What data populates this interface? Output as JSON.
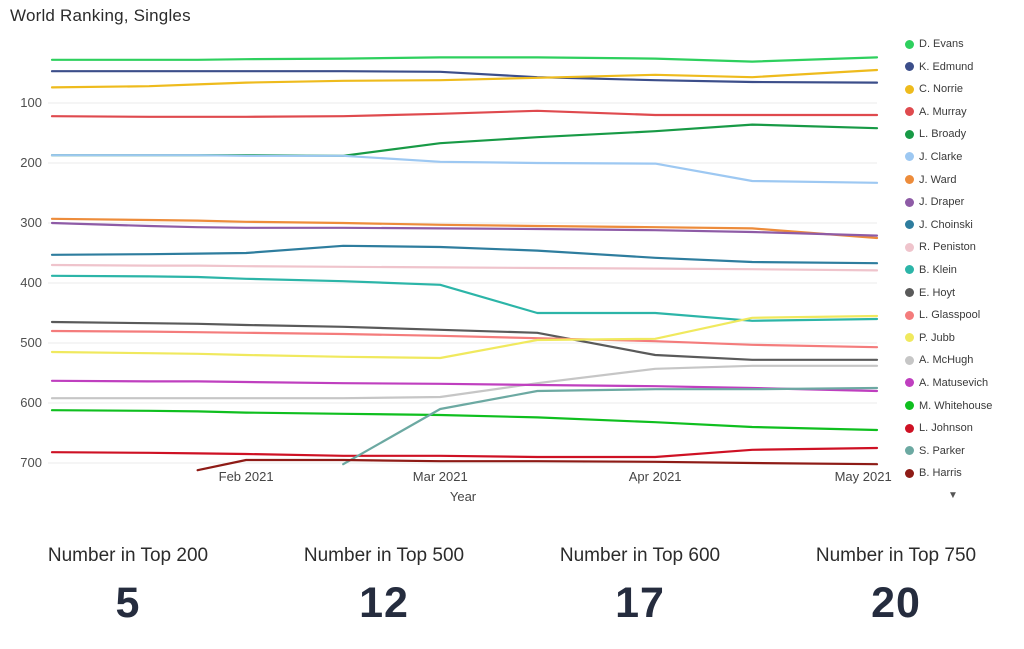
{
  "title": "World Ranking, Singles",
  "x_axis_title": "Year",
  "legend_expand_symbol": "▼",
  "chart_data": {
    "type": "line",
    "title": "World Ranking, Singles",
    "xlabel": "Year",
    "ylabel": "",
    "y_inverted": true,
    "ylim": [
      15,
      730
    ],
    "yticks": [
      100,
      200,
      300,
      400,
      500,
      600,
      700
    ],
    "grid": "horizontal",
    "legend_position": "right",
    "x": [
      "Jan 4",
      "Jan 18",
      "Jan 25",
      "Feb 1",
      "Feb 15",
      "Mar 1",
      "Mar 15",
      "Apr 1",
      "Apr 15",
      "May 3"
    ],
    "x_day_offsets": [
      0,
      14,
      21,
      28,
      42,
      56,
      70,
      87,
      101,
      119
    ],
    "xticklabels": [
      "Feb 2021",
      "Mar 2021",
      "Apr 2021",
      "May 2021"
    ],
    "xtick_day_offsets": [
      28,
      56,
      87,
      117
    ],
    "series": [
      {
        "name": "D. Evans",
        "color": "#2ed05e",
        "values": [
          28,
          28,
          28,
          27,
          26,
          24,
          24,
          26,
          31,
          24
        ]
      },
      {
        "name": "K. Edmund",
        "color": "#3c4e8a",
        "values": [
          47,
          47,
          47,
          47,
          47,
          48,
          57,
          62,
          65,
          66
        ]
      },
      {
        "name": "C. Norrie",
        "color": "#eebb1d",
        "values": [
          74,
          72,
          69,
          66,
          63,
          62,
          58,
          53,
          57,
          45
        ]
      },
      {
        "name": "A. Murray",
        "color": "#df4a4e",
        "values": [
          122,
          123,
          123,
          123,
          122,
          118,
          113,
          120,
          120,
          120
        ]
      },
      {
        "name": "L. Broady",
        "color": "#189a46",
        "values": [
          187,
          187,
          187,
          187,
          188,
          167,
          157,
          147,
          136,
          142
        ]
      },
      {
        "name": "J. Clarke",
        "color": "#9dc8f2",
        "values": [
          187,
          187,
          187,
          188,
          188,
          198,
          200,
          201,
          230,
          233
        ]
      },
      {
        "name": "J. Ward",
        "color": "#ed8c3b",
        "values": [
          293,
          295,
          296,
          298,
          300,
          303,
          305,
          307,
          309,
          325
        ]
      },
      {
        "name": "J. Draper",
        "color": "#8e5ba6",
        "values": [
          300,
          305,
          307,
          308,
          308,
          309,
          310,
          312,
          315,
          321
        ]
      },
      {
        "name": "J. Choinski",
        "color": "#2e7d9e",
        "values": [
          353,
          352,
          351,
          350,
          338,
          340,
          346,
          358,
          365,
          367
        ]
      },
      {
        "name": "R. Peniston",
        "color": "#efc4cc",
        "values": [
          370,
          371,
          371,
          372,
          373,
          374,
          375,
          376,
          377,
          379
        ]
      },
      {
        "name": "B. Klein",
        "color": "#2cb5a8",
        "values": [
          388,
          389,
          390,
          393,
          397,
          403,
          450,
          450,
          463,
          460
        ]
      },
      {
        "name": "E. Hoyt",
        "color": "#5a5a5a",
        "values": [
          465,
          467,
          468,
          470,
          473,
          478,
          483,
          520,
          528,
          528
        ]
      },
      {
        "name": "L. Glasspool",
        "color": "#f47c7c",
        "values": [
          480,
          481,
          482,
          483,
          485,
          488,
          492,
          497,
          503,
          507
        ]
      },
      {
        "name": "P. Jubb",
        "color": "#f0e95e",
        "values": [
          515,
          517,
          518,
          520,
          523,
          525,
          495,
          493,
          458,
          455
        ]
      },
      {
        "name": "A. McHugh",
        "color": "#c6c6c6",
        "values": [
          592,
          592,
          592,
          592,
          592,
          590,
          567,
          543,
          538,
          538
        ]
      },
      {
        "name": "A. Matusevich",
        "color": "#bf3fbf",
        "values": [
          563,
          564,
          564,
          565,
          567,
          568,
          570,
          572,
          575,
          580
        ]
      },
      {
        "name": "M. Whitehouse",
        "color": "#0fbf1f",
        "values": [
          612,
          613,
          614,
          616,
          618,
          620,
          624,
          632,
          640,
          645
        ]
      },
      {
        "name": "L. Johnson",
        "color": "#ce1124",
        "values": [
          682,
          683,
          684,
          685,
          688,
          688,
          690,
          690,
          678,
          675
        ]
      },
      {
        "name": "S. Parker",
        "color": "#6ca9a2",
        "values": [
          null,
          null,
          null,
          null,
          702,
          610,
          580,
          577,
          577,
          575
        ]
      },
      {
        "name": "B. Harris",
        "color": "#8e1b16",
        "values": [
          null,
          null,
          712,
          695,
          695,
          697,
          697,
          698,
          700,
          702
        ]
      }
    ]
  },
  "cards": [
    {
      "label": "Number in Top 200",
      "value": "5"
    },
    {
      "label": "Number in Top 500",
      "value": "12"
    },
    {
      "label": "Number in Top 600",
      "value": "17"
    },
    {
      "label": "Number in Top 750",
      "value": "20"
    }
  ]
}
